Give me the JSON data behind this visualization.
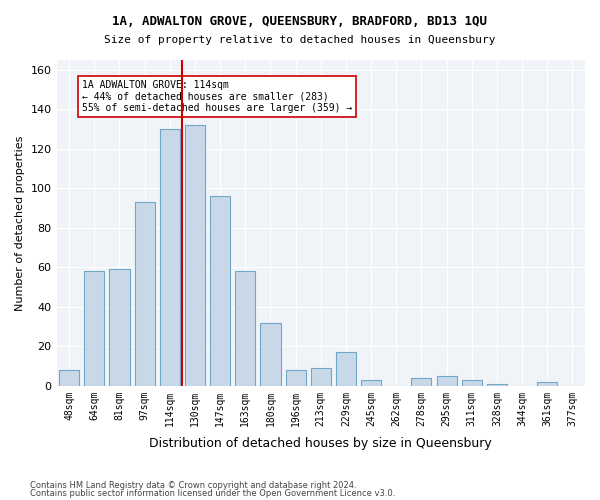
{
  "title1": "1A, ADWALTON GROVE, QUEENSBURY, BRADFORD, BD13 1QU",
  "title2": "Size of property relative to detached houses in Queensbury",
  "xlabel": "Distribution of detached houses by size in Queensbury",
  "ylabel": "Number of detached properties",
  "categories": [
    "48sqm",
    "64sqm",
    "81sqm",
    "97sqm",
    "114sqm",
    "130sqm",
    "147sqm",
    "163sqm",
    "180sqm",
    "196sqm",
    "213sqm",
    "229sqm",
    "245sqm",
    "262sqm",
    "278sqm",
    "295sqm",
    "311sqm",
    "328sqm",
    "344sqm",
    "361sqm",
    "377sqm"
  ],
  "values": [
    8,
    58,
    59,
    93,
    130,
    132,
    96,
    58,
    32,
    8,
    9,
    17,
    3,
    0,
    4,
    5,
    3,
    1,
    0,
    2,
    0
  ],
  "bar_color": "#c8d8e8",
  "bar_edge_color": "#6fa8c8",
  "highlight_index": 4,
  "highlight_color": "#cc0000",
  "vline_x": 4,
  "ylim": [
    0,
    165
  ],
  "yticks": [
    0,
    20,
    40,
    60,
    80,
    100,
    120,
    140,
    160
  ],
  "annotation_text": "1A ADWALTON GROVE: 114sqm\n← 44% of detached houses are smaller (283)\n55% of semi-detached houses are larger (359) →",
  "footnote1": "Contains HM Land Registry data © Crown copyright and database right 2024.",
  "footnote2": "Contains public sector information licensed under the Open Government Licence v3.0.",
  "bg_color": "#f0f4f8"
}
